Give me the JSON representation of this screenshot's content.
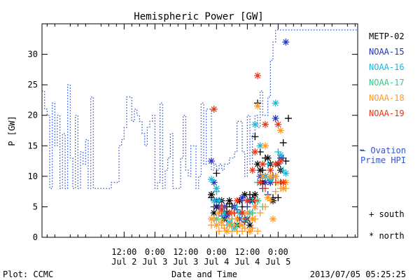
{
  "chart_data": {
    "type": "scatter",
    "title": "Hemispheric Power [GW]",
    "ylabel": "P [GW]",
    "xlabel": "Date and Time",
    "x_unit": "hours since 2013-07-01 00:00",
    "xlim": [
      4,
      127
    ],
    "ylim": [
      0,
      35
    ],
    "yticks": [
      0,
      5,
      10,
      15,
      20,
      25,
      30
    ],
    "xticks": [
      {
        "x": 36,
        "l1": "12:00",
        "l2": "Jul 2"
      },
      {
        "x": 48,
        "l1": "0:00",
        "l2": "Jul 3"
      },
      {
        "x": 60,
        "l1": "12:00",
        "l2": "Jul 3"
      },
      {
        "x": 72,
        "l1": "0:00",
        "l2": "Jul 4"
      },
      {
        "x": 84,
        "l1": "12:00",
        "l2": "Jul 4"
      },
      {
        "x": 96,
        "l1": "0:00",
        "l2": "Jul 5"
      }
    ],
    "ovation": {
      "name": "— Ovation Prime HPI",
      "color": "#3355cc",
      "points": [
        [
          4,
          24
        ],
        [
          5,
          21
        ],
        [
          6,
          20
        ],
        [
          7,
          8
        ],
        [
          8,
          22
        ],
        [
          9,
          15
        ],
        [
          10,
          20
        ],
        [
          11,
          8
        ],
        [
          12,
          17
        ],
        [
          13,
          8
        ],
        [
          14,
          25
        ],
        [
          15,
          13
        ],
        [
          16,
          8
        ],
        [
          17,
          20
        ],
        [
          18,
          8
        ],
        [
          19,
          14
        ],
        [
          20,
          12
        ],
        [
          21,
          16
        ],
        [
          22,
          8
        ],
        [
          23,
          23
        ],
        [
          24,
          8
        ],
        [
          30,
          8
        ],
        [
          31,
          9
        ],
        [
          33,
          9
        ],
        [
          34,
          15
        ],
        [
          35,
          16
        ],
        [
          36,
          18
        ],
        [
          37,
          23
        ],
        [
          39,
          19
        ],
        [
          40,
          21
        ],
        [
          41,
          20
        ],
        [
          42,
          19
        ],
        [
          43,
          17
        ],
        [
          44,
          15
        ],
        [
          45,
          18
        ],
        [
          46,
          19
        ],
        [
          47,
          20
        ],
        [
          48,
          8
        ],
        [
          49,
          9
        ],
        [
          50,
          22
        ],
        [
          51,
          8
        ],
        [
          52,
          11
        ],
        [
          53,
          13
        ],
        [
          54,
          17
        ],
        [
          55,
          8
        ],
        [
          57,
          8
        ],
        [
          58,
          13
        ],
        [
          59,
          20
        ],
        [
          60,
          11
        ],
        [
          61,
          10
        ],
        [
          62,
          15
        ],
        [
          64,
          8
        ],
        [
          65,
          10
        ],
        [
          66,
          22
        ],
        [
          67,
          12
        ],
        [
          68,
          21
        ],
        [
          70,
          11
        ],
        [
          71,
          12
        ],
        [
          72,
          11
        ],
        [
          73,
          12
        ],
        [
          74,
          11
        ],
        [
          75,
          12
        ],
        [
          77,
          13
        ],
        [
          79,
          14
        ],
        [
          80,
          19
        ],
        [
          82,
          14
        ],
        [
          83,
          10
        ],
        [
          84,
          20
        ],
        [
          85,
          12
        ],
        [
          86,
          17
        ],
        [
          87,
          20
        ],
        [
          88,
          18
        ],
        [
          89,
          24
        ],
        [
          90,
          20
        ],
        [
          91,
          20
        ],
        [
          92,
          23
        ],
        [
          93,
          29
        ],
        [
          94,
          32
        ],
        [
          95,
          34
        ]
      ]
    },
    "series": [
      {
        "name": "METP-02",
        "color": "#000000",
        "south": [
          [
            70,
            6.5
          ],
          [
            72,
            10.5
          ],
          [
            73,
            6
          ],
          [
            75,
            4
          ],
          [
            76,
            5
          ],
          [
            77,
            5.5
          ],
          [
            78,
            5
          ],
          [
            79,
            4
          ],
          [
            80,
            3
          ],
          [
            81,
            6
          ],
          [
            82,
            5
          ],
          [
            83,
            2.5
          ],
          [
            84,
            6
          ],
          [
            85,
            7
          ],
          [
            86,
            6.5
          ],
          [
            87,
            16.5
          ],
          [
            88,
            22
          ],
          [
            89,
            14
          ],
          [
            90,
            11
          ],
          [
            91,
            13
          ],
          [
            92,
            12
          ],
          [
            93,
            9
          ],
          [
            94,
            6.5
          ],
          [
            95,
            10
          ],
          [
            96,
            6.5
          ],
          [
            97,
            9
          ],
          [
            98,
            15.5
          ],
          [
            99,
            12.5
          ],
          [
            100,
            19.5
          ]
        ],
        "north": [
          [
            70,
            7
          ],
          [
            71,
            4
          ],
          [
            72,
            5
          ],
          [
            74,
            6
          ],
          [
            75,
            3
          ],
          [
            76,
            4
          ],
          [
            77,
            6
          ],
          [
            78,
            4
          ],
          [
            79,
            5
          ],
          [
            80,
            2
          ],
          [
            81,
            6
          ],
          [
            82,
            4
          ],
          [
            83,
            7
          ],
          [
            84,
            3
          ],
          [
            85,
            2
          ],
          [
            86,
            6
          ],
          [
            87,
            7
          ],
          [
            88,
            12
          ],
          [
            89,
            11
          ],
          [
            90,
            9
          ],
          [
            91,
            10
          ],
          [
            92,
            13
          ],
          [
            93,
            12
          ],
          [
            94,
            6
          ],
          [
            96,
            12
          ],
          [
            97,
            11
          ]
        ]
      },
      {
        "name": "NOAA-15",
        "color": "#2233bb",
        "south": [
          [
            71,
            5
          ],
          [
            73,
            4
          ],
          [
            74,
            3.5
          ],
          [
            76,
            3
          ],
          [
            78,
            4
          ],
          [
            80,
            4.5
          ],
          [
            82,
            6
          ],
          [
            84,
            5
          ],
          [
            86,
            4
          ],
          [
            88,
            6
          ],
          [
            90,
            8
          ],
          [
            92,
            7
          ],
          [
            94,
            10
          ],
          [
            96,
            12
          ],
          [
            98,
            13
          ]
        ],
        "north": [
          [
            70,
            12.5
          ],
          [
            71,
            9
          ],
          [
            72,
            6
          ],
          [
            73,
            5
          ],
          [
            75,
            5
          ],
          [
            76,
            3.5
          ],
          [
            77,
            4
          ],
          [
            79,
            5
          ],
          [
            81,
            3
          ],
          [
            82,
            6.5
          ],
          [
            83,
            3
          ],
          [
            85,
            6
          ],
          [
            87,
            5
          ],
          [
            89,
            10
          ],
          [
            91,
            9
          ],
          [
            93,
            9
          ],
          [
            95,
            19.5
          ],
          [
            97,
            13
          ],
          [
            99,
            32
          ]
        ]
      },
      {
        "name": "NOAA-16",
        "color": "#11bbdd",
        "south": [
          [
            72,
            7.5
          ],
          [
            74,
            4.5
          ],
          [
            76,
            2
          ],
          [
            78,
            3
          ],
          [
            80,
            5
          ],
          [
            82,
            4
          ],
          [
            84,
            3
          ],
          [
            86,
            6
          ],
          [
            88,
            9
          ],
          [
            92,
            12
          ],
          [
            96,
            14
          ],
          [
            98,
            11
          ]
        ],
        "north": [
          [
            70,
            9.5
          ],
          [
            71,
            6
          ],
          [
            72,
            8
          ],
          [
            73,
            6
          ],
          [
            75,
            4
          ],
          [
            77,
            2.5
          ],
          [
            79,
            1.5
          ],
          [
            81,
            4
          ],
          [
            83,
            3
          ],
          [
            85,
            4
          ],
          [
            87,
            18.5
          ],
          [
            89,
            15
          ],
          [
            91,
            10
          ],
          [
            93,
            9.5
          ],
          [
            95,
            22
          ],
          [
            97,
            13.5
          ],
          [
            99,
            10.5
          ]
        ]
      },
      {
        "name": "NOAA-17",
        "color": "#33cc88",
        "south": [
          [
            74,
            3
          ],
          [
            80,
            2
          ],
          [
            86,
            4
          ],
          [
            90,
            5
          ]
        ],
        "north": [
          [
            72,
            3
          ],
          [
            78,
            2
          ],
          [
            88,
            6
          ]
        ]
      },
      {
        "name": "NOAA-18",
        "color": "#ff9922",
        "south": [
          [
            70,
            2
          ],
          [
            71,
            3
          ],
          [
            73,
            1
          ],
          [
            74,
            2
          ],
          [
            75,
            1.5
          ],
          [
            77,
            3
          ],
          [
            78,
            1
          ],
          [
            79,
            2
          ],
          [
            80,
            1
          ],
          [
            81,
            2
          ],
          [
            82,
            1
          ],
          [
            83,
            1.5
          ],
          [
            85,
            1
          ],
          [
            86,
            1.5
          ],
          [
            87,
            3
          ],
          [
            88,
            1
          ],
          [
            89,
            4
          ],
          [
            91,
            5
          ],
          [
            93,
            6
          ],
          [
            95,
            7.5
          ],
          [
            97,
            8
          ],
          [
            99,
            8
          ]
        ],
        "north": [
          [
            70,
            3
          ],
          [
            72,
            2
          ],
          [
            73,
            4
          ],
          [
            74,
            2.5
          ],
          [
            76,
            1
          ],
          [
            77,
            2
          ],
          [
            78,
            4
          ],
          [
            80,
            3
          ],
          [
            82,
            2
          ],
          [
            84,
            4
          ],
          [
            85,
            1
          ],
          [
            86,
            3
          ],
          [
            87,
            5
          ],
          [
            88,
            21.5
          ],
          [
            89,
            9
          ],
          [
            90,
            10
          ],
          [
            91,
            15
          ],
          [
            92,
            6.5
          ],
          [
            93,
            10
          ],
          [
            94,
            3
          ],
          [
            95,
            10
          ],
          [
            96,
            9
          ],
          [
            97,
            17.5
          ],
          [
            98,
            8
          ],
          [
            99,
            9
          ]
        ]
      },
      {
        "name": "NOAA-19",
        "color": "#ee3311",
        "south": [
          [
            74,
            5
          ],
          [
            79,
            4
          ],
          [
            83,
            3
          ],
          [
            87,
            6
          ],
          [
            91,
            8
          ],
          [
            95,
            9
          ]
        ],
        "north": [
          [
            71,
            21
          ],
          [
            74,
            4.5
          ],
          [
            77,
            4
          ],
          [
            80,
            6
          ],
          [
            82,
            4
          ],
          [
            84,
            6
          ],
          [
            86,
            11
          ],
          [
            87,
            14
          ],
          [
            88,
            26.5
          ],
          [
            89,
            9
          ],
          [
            90,
            12
          ],
          [
            91,
            18.5
          ],
          [
            93,
            11
          ],
          [
            95,
            12
          ],
          [
            96,
            18.5
          ],
          [
            97,
            12.5
          ],
          [
            98,
            9
          ]
        ]
      }
    ],
    "symbols": {
      "south": "+ south",
      "north": "* north"
    },
    "footer": {
      "left": "Plot: CCMC",
      "right": "2013/07/05 05:25:25"
    }
  }
}
